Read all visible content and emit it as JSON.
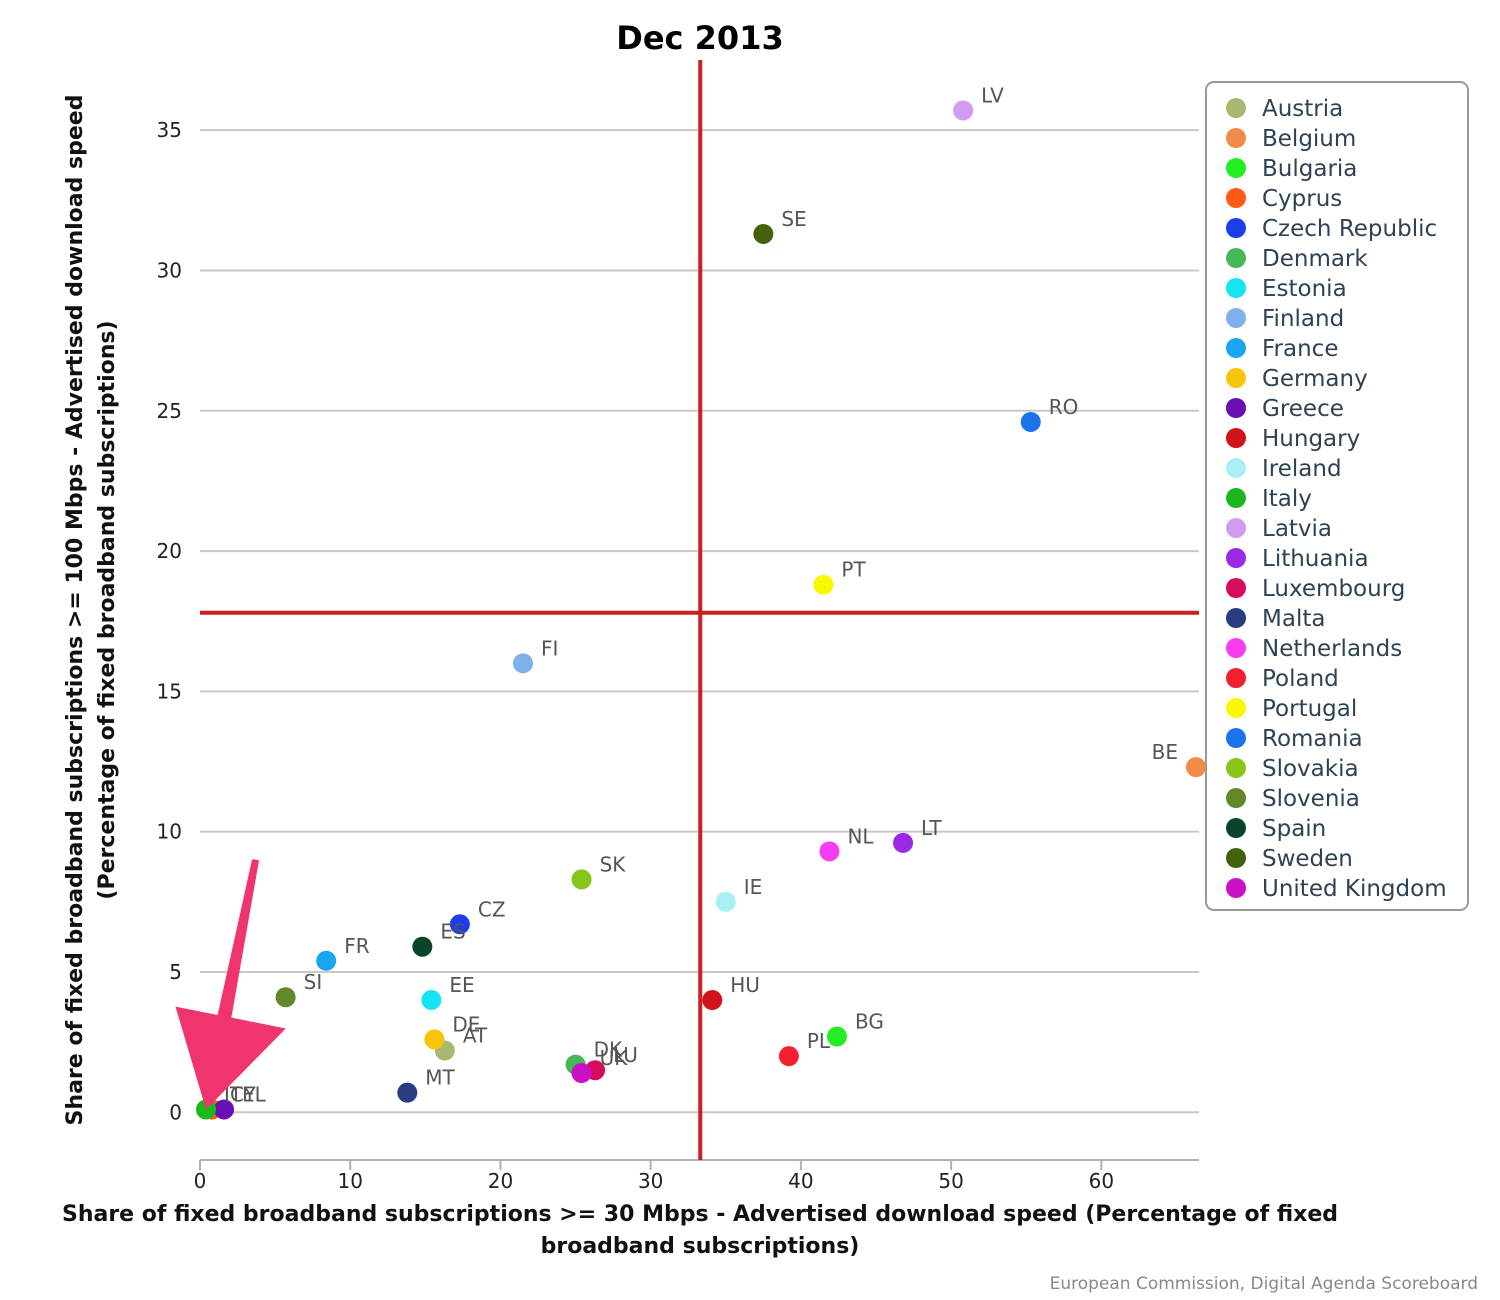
{
  "chart_data": {
    "type": "scatter",
    "title": "Dec 2013",
    "xlabel": "Share of fixed broadband subscriptions >= 30 Mbps - Advertised download speed (Percentage of fixed broadband subscriptions)",
    "ylabel": "Share of fixed broadband subscriptions >= 100 Mbps - Advertised download speed (Percentage of fixed broadband subscriptions)",
    "credit": "European Commission, Digital Agenda Scoreboard",
    "xlim": [
      0,
      66.5
    ],
    "ylim": [
      -1.7,
      37.5
    ],
    "x_ticks": [
      0,
      10,
      20,
      30,
      40,
      50,
      60
    ],
    "y_ticks": [
      0,
      5,
      10,
      15,
      20,
      25,
      30,
      35
    ],
    "grid": "horizontal",
    "legend_position": "right",
    "reference_lines": {
      "x": 33.3,
      "y": 17.8,
      "color": "#cc1f1f"
    },
    "annotation_arrow": {
      "color": "#f0346e",
      "from": [
        3.7,
        9.0
      ],
      "to": [
        0.4,
        0.1
      ]
    },
    "series": [
      {
        "name": "Austria",
        "code": "AT",
        "color": "#a6b96e",
        "x": 16.3,
        "y": 2.2
      },
      {
        "name": "Belgium",
        "code": "BE",
        "color": "#f28a4a",
        "x": 66.3,
        "y": 12.3
      },
      {
        "name": "Bulgaria",
        "code": "BG",
        "color": "#22ee22",
        "x": 42.4,
        "y": 2.7
      },
      {
        "name": "Cyprus",
        "code": "CY",
        "color": "#ff5a16",
        "x": 0.8,
        "y": 0.1
      },
      {
        "name": "Czech Republic",
        "code": "CZ",
        "color": "#1d3dea",
        "x": 17.3,
        "y": 6.7
      },
      {
        "name": "Denmark",
        "code": "DK",
        "color": "#45b85a",
        "x": 25.0,
        "y": 1.7
      },
      {
        "name": "Estonia",
        "code": "EE",
        "color": "#16e4f4",
        "x": 15.4,
        "y": 4.0
      },
      {
        "name": "Finland",
        "code": "FI",
        "color": "#7fb0ec",
        "x": 21.5,
        "y": 16.0
      },
      {
        "name": "France",
        "code": "FR",
        "color": "#1aa6ee",
        "x": 8.4,
        "y": 5.4
      },
      {
        "name": "Germany",
        "code": "DE",
        "color": "#f8c40c",
        "x": 15.6,
        "y": 2.6
      },
      {
        "name": "Greece",
        "code": "EL",
        "color": "#6a0db2",
        "x": 1.6,
        "y": 0.1
      },
      {
        "name": "Hungary",
        "code": "HU",
        "color": "#d0141a",
        "x": 34.1,
        "y": 4.0
      },
      {
        "name": "Ireland",
        "code": "IE",
        "color": "#aaeef6",
        "x": 35.0,
        "y": 7.5
      },
      {
        "name": "Italy",
        "code": "IT",
        "color": "#1ab81a",
        "x": 0.4,
        "y": 0.1
      },
      {
        "name": "Latvia",
        "code": "LV",
        "color": "#d29af0",
        "x": 50.8,
        "y": 35.7
      },
      {
        "name": "Lithuania",
        "code": "LT",
        "color": "#9a2ae6",
        "x": 46.8,
        "y": 9.6
      },
      {
        "name": "Luxembourg",
        "code": "LU",
        "color": "#d80c5c",
        "x": 26.3,
        "y": 1.5
      },
      {
        "name": "Malta",
        "code": "MT",
        "color": "#2a3c82",
        "x": 13.8,
        "y": 0.7
      },
      {
        "name": "Netherlands",
        "code": "NL",
        "color": "#f63ef0",
        "x": 41.9,
        "y": 9.3
      },
      {
        "name": "Poland",
        "code": "PL",
        "color": "#f42030",
        "x": 39.2,
        "y": 2.0
      },
      {
        "name": "Portugal",
        "code": "PT",
        "color": "#f8f800",
        "x": 41.5,
        "y": 18.8
      },
      {
        "name": "Romania",
        "code": "RO",
        "color": "#1c74ec",
        "x": 55.3,
        "y": 24.6
      },
      {
        "name": "Slovakia",
        "code": "SK",
        "color": "#86c61a",
        "x": 25.4,
        "y": 8.3
      },
      {
        "name": "Slovenia",
        "code": "SI",
        "color": "#62882a",
        "x": 5.7,
        "y": 4.1
      },
      {
        "name": "Spain",
        "code": "ES",
        "color": "#08452a",
        "x": 14.8,
        "y": 5.9
      },
      {
        "name": "Sweden",
        "code": "SE",
        "color": "#44620e",
        "x": 37.5,
        "y": 31.3
      },
      {
        "name": "United Kingdom",
        "code": "UK",
        "color": "#cc10c6",
        "x": 25.4,
        "y": 1.4
      }
    ]
  }
}
